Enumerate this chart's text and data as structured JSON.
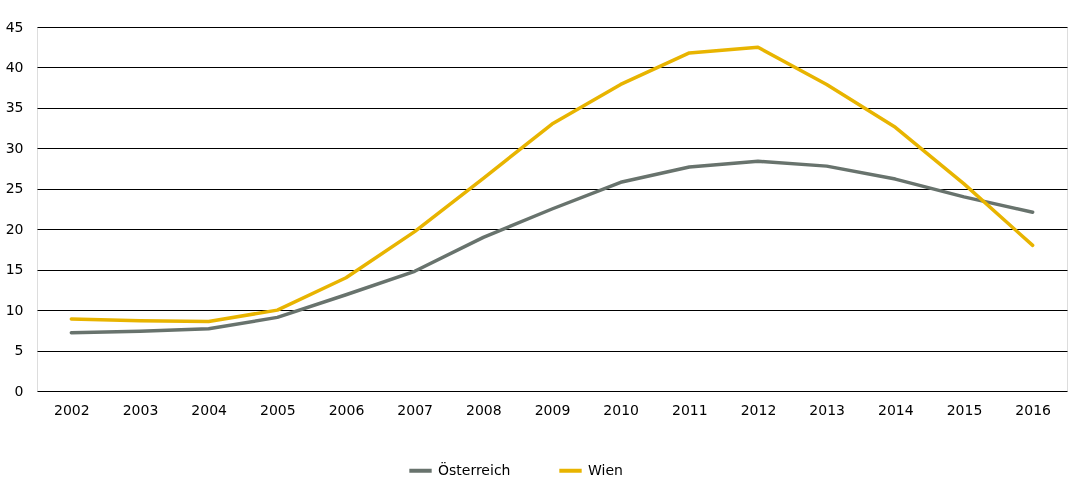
{
  "chart_data": {
    "type": "line",
    "categories": [
      "2002",
      "2003",
      "2004",
      "2005",
      "2006",
      "2007",
      "2008",
      "2009",
      "2010",
      "2011",
      "2012",
      "2013",
      "2014",
      "2015",
      "2016"
    ],
    "series": [
      {
        "name": "Österreich",
        "color": "#68736d",
        "values": [
          7.2,
          7.4,
          7.7,
          9.1,
          11.9,
          14.8,
          19.0,
          22.5,
          25.8,
          27.7,
          28.4,
          27.8,
          26.2,
          24.0,
          22.1
        ]
      },
      {
        "name": "Wien",
        "color": "#e8b400",
        "values": [
          8.9,
          8.7,
          8.6,
          10.0,
          14.0,
          19.7,
          26.3,
          33.0,
          37.9,
          41.8,
          42.5,
          37.9,
          32.6,
          25.6,
          18.0
        ]
      }
    ],
    "ylim": [
      0,
      45
    ],
    "yticks": [
      0,
      5,
      10,
      15,
      20,
      25,
      30,
      35,
      40,
      45
    ],
    "grid": "y",
    "legend": "bottom",
    "marker": "none",
    "line_style": "solid"
  }
}
